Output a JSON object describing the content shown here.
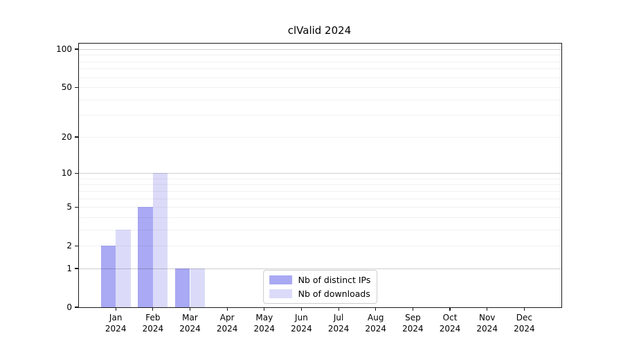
{
  "title": "clValid 2024",
  "chart_data": {
    "type": "bar",
    "title": "clValid 2024",
    "categories": [
      "Jan 2024",
      "Feb 2024",
      "Mar 2024",
      "Apr 2024",
      "May 2024",
      "Jun 2024",
      "Jul 2024",
      "Aug 2024",
      "Sep 2024",
      "Oct 2024",
      "Nov 2024",
      "Dec 2024"
    ],
    "series": [
      {
        "name": "Nb of distinct IPs",
        "color": "#a9a9f4",
        "values": [
          2,
          5,
          1,
          0,
          0,
          0,
          0,
          0,
          0,
          0,
          0,
          0
        ]
      },
      {
        "name": "Nb of downloads",
        "color": "#dbdbf9",
        "values": [
          3,
          10,
          1,
          0,
          0,
          0,
          0,
          0,
          0,
          0,
          0,
          0
        ]
      }
    ],
    "xlabel": "",
    "ylabel": "",
    "yscale": "log1p",
    "ylim": [
      0,
      100
    ],
    "yticks": [
      0,
      1,
      2,
      5,
      10,
      20,
      50,
      100
    ],
    "grid_minor_values": [
      2,
      3,
      4,
      5,
      6,
      7,
      8,
      9,
      20,
      30,
      40,
      50,
      60,
      70,
      80,
      90
    ],
    "grid_major_values": [
      1,
      10,
      100
    ],
    "grid": "horizontal",
    "legend_position": "inside-bottom-center"
  }
}
